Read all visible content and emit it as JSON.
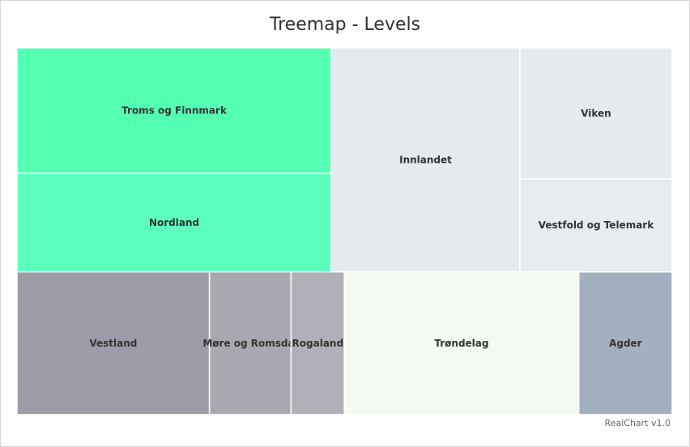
{
  "chart_data": {
    "type": "treemap",
    "title": "Treemap - Levels",
    "groups": [
      {
        "color": "#55ffb2",
        "items": [
          {
            "name": "Troms og Finnmark",
            "value": 48631,
            "color": "#55ffb2"
          },
          {
            "name": "Nordland",
            "value": 38155,
            "color": "#5bffbb"
          }
        ]
      },
      {
        "color": "#e5eaef",
        "items": [
          {
            "name": "Innlandet",
            "value": 52072,
            "color": "#e5eaef"
          },
          {
            "name": "Viken",
            "value": 24592,
            "color": "#e6ebf0"
          },
          {
            "name": "Vestfold og Telemark",
            "value": 17466,
            "color": "#e7ecf1"
          }
        ]
      },
      {
        "color": "#9e9ca6",
        "items": [
          {
            "name": "Vestland",
            "value": 33871,
            "color": "#9e9ca6"
          },
          {
            "name": "Møre og Romsdal",
            "value": 14356,
            "color": "#a9a8b1"
          },
          {
            "name": "Rogaland",
            "value": 9377,
            "color": "#b1b0b8"
          }
        ]
      },
      {
        "color": "#f4faf1",
        "items": [
          {
            "name": "Trøndelag",
            "value": 41254,
            "color": "#f4faf1"
          }
        ]
      },
      {
        "color": "#a3b0c0",
        "items": [
          {
            "name": "Agder",
            "value": 16434,
            "color": "#a3b0c0"
          }
        ]
      }
    ]
  },
  "footer": {
    "credit": "RealChart v1.0"
  }
}
